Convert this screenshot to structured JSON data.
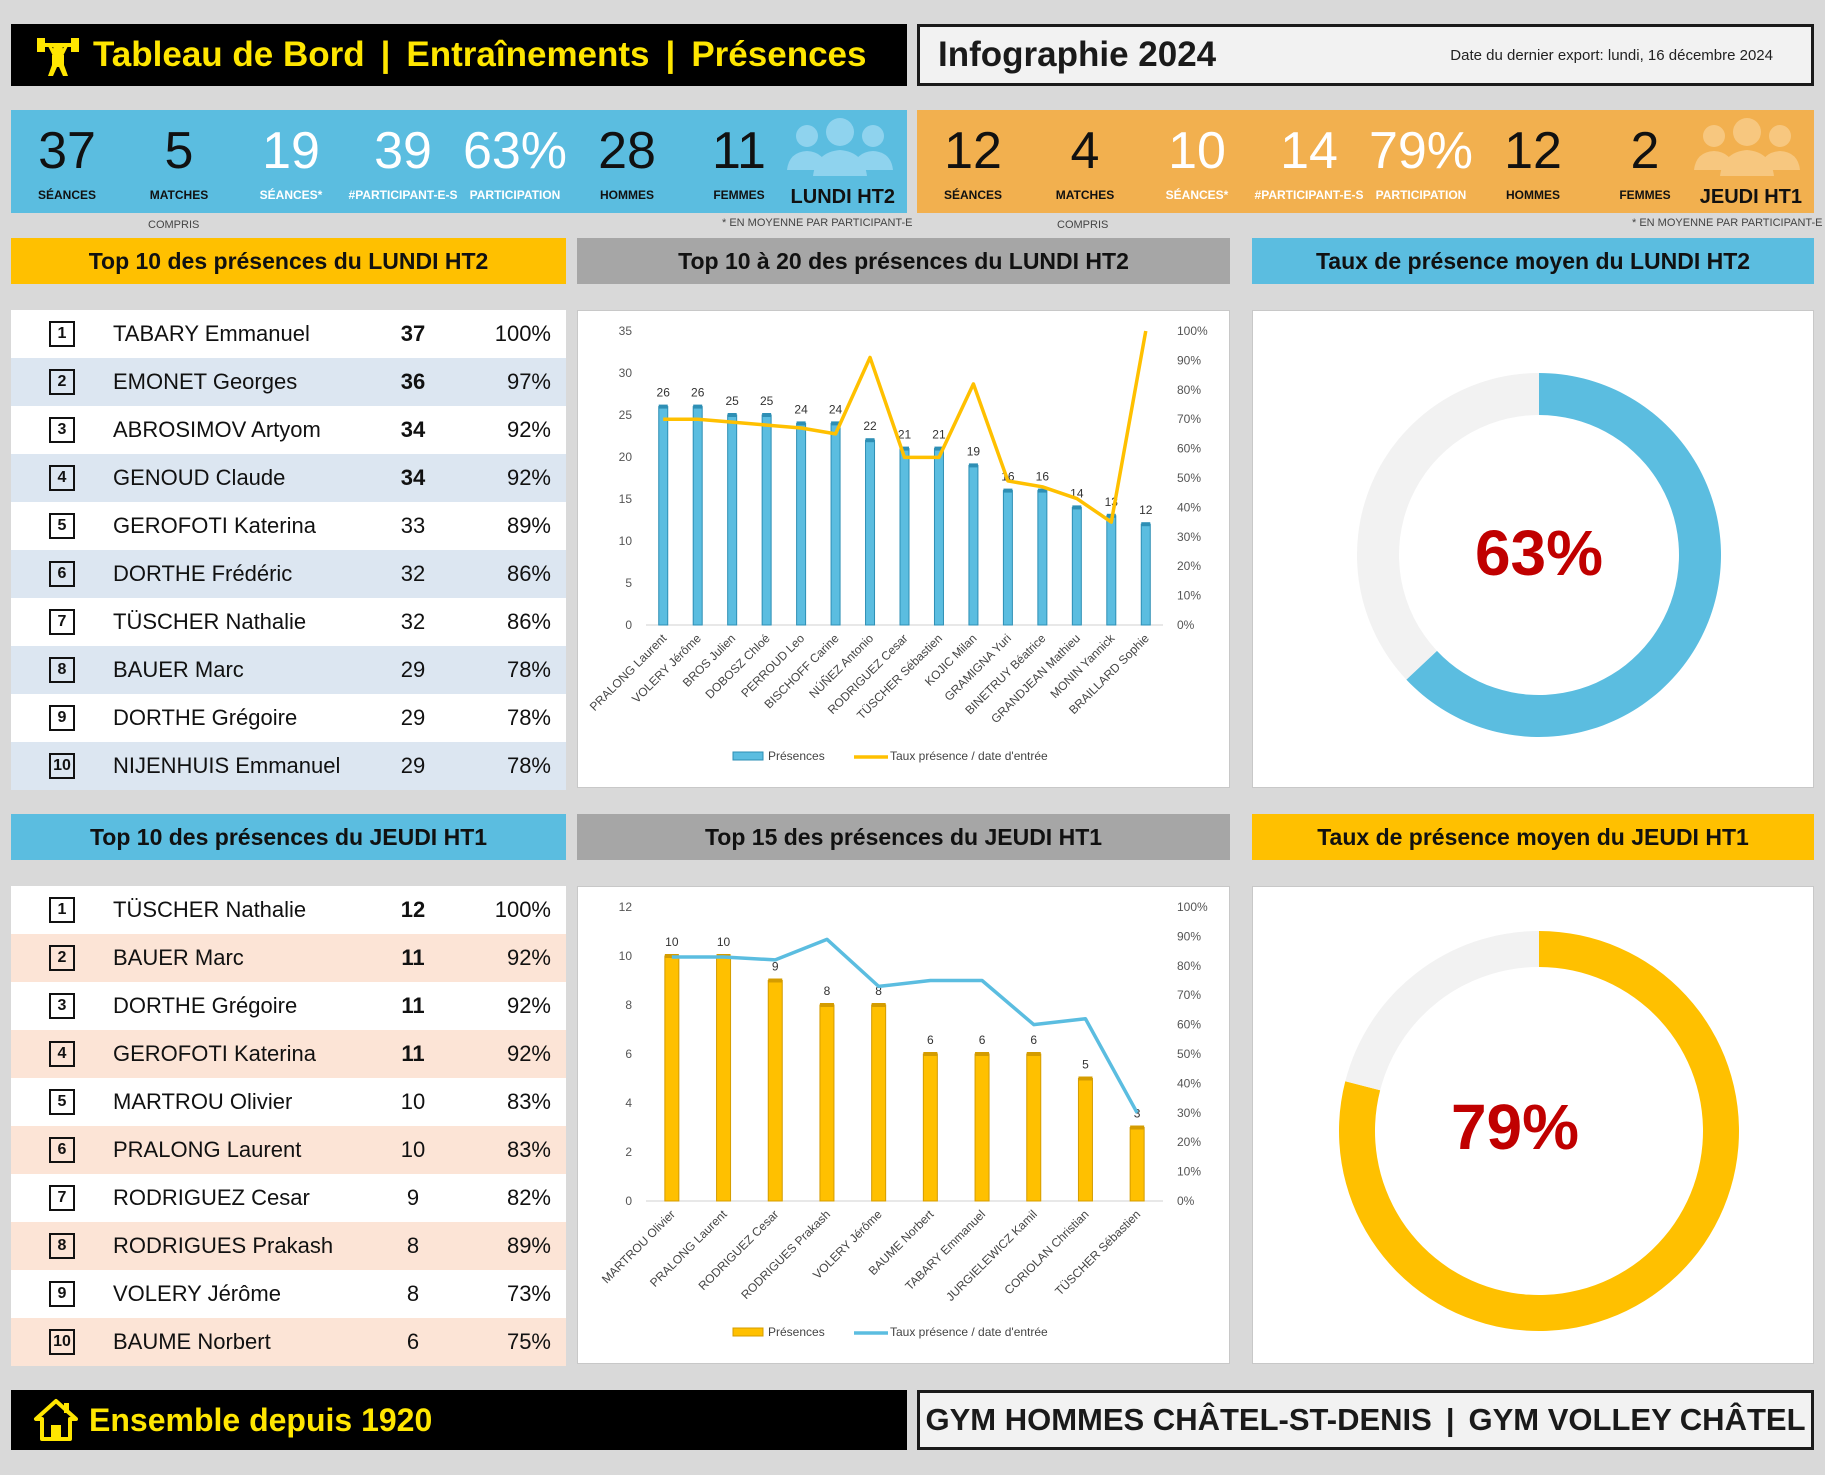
{
  "header": {
    "title_parts": [
      "Tableau de Bord",
      "Entraînements",
      "Présences"
    ],
    "separator": "|",
    "title_icon": "weightlifter-icon",
    "infographic_title": "Infographie 2024",
    "export_label": "Date du dernier export:",
    "export_date": "lundi, 16 décembre 2024"
  },
  "kpis_lundi": {
    "tag": "LUNDI HT2",
    "icon": "people-icon",
    "items": [
      {
        "value": "37",
        "label": "SÉANCES"
      },
      {
        "value": "5",
        "label": "MATCHES"
      },
      {
        "value": "19",
        "label": "SÉANCES*"
      },
      {
        "value": "39",
        "label": "#PARTICIPANT-E-S"
      },
      {
        "value": "63%",
        "label": "PARTICIPATION"
      },
      {
        "value": "28",
        "label": "HOMMES"
      },
      {
        "value": "11",
        "label": "FEMMES"
      }
    ],
    "note_left": "COMPRIS",
    "note_right": "* EN MOYENNE PAR PARTICIPANT-E"
  },
  "kpis_jeudi": {
    "tag": "JEUDI HT1",
    "icon": "people-icon",
    "items": [
      {
        "value": "12",
        "label": "SÉANCES"
      },
      {
        "value": "4",
        "label": "MATCHES"
      },
      {
        "value": "10",
        "label": "SÉANCES*"
      },
      {
        "value": "14",
        "label": "#PARTICIPANT-E-S"
      },
      {
        "value": "79%",
        "label": "PARTICIPATION"
      },
      {
        "value": "12",
        "label": "HOMMES"
      },
      {
        "value": "2",
        "label": "FEMMES"
      }
    ],
    "note_left": "COMPRIS",
    "note_right": "* EN MOYENNE PAR PARTICIPANT-E"
  },
  "sections": {
    "top10_lundi": "Top 10 des présences du LUNDI HT2",
    "top20_lundi": "Top 10 à 20 des présences du LUNDI HT2",
    "rate_lundi": "Taux de présence moyen du LUNDI HT2",
    "top10_jeudi": "Top 10 des présences du JEUDI HT1",
    "top15_jeudi": "Top 15 des présences du JEUDI HT1",
    "rate_jeudi": "Taux de présence moyen du JEUDI HT1"
  },
  "table_lundi": [
    {
      "rank": "1",
      "name": "TABARY Emmanuel",
      "count": "37",
      "pct": "100%",
      "bold": true
    },
    {
      "rank": "2",
      "name": "EMONET Georges",
      "count": "36",
      "pct": "97%",
      "bold": true
    },
    {
      "rank": "3",
      "name": "ABROSIMOV Artyom",
      "count": "34",
      "pct": "92%",
      "bold": true
    },
    {
      "rank": "4",
      "name": "GENOUD Claude",
      "count": "34",
      "pct": "92%",
      "bold": true
    },
    {
      "rank": "5",
      "name": "GEROFOTI Katerina",
      "count": "33",
      "pct": "89%",
      "bold": false
    },
    {
      "rank": "6",
      "name": "DORTHE Frédéric",
      "count": "32",
      "pct": "86%",
      "bold": false
    },
    {
      "rank": "7",
      "name": "TÜSCHER Nathalie",
      "count": "32",
      "pct": "86%",
      "bold": false
    },
    {
      "rank": "8",
      "name": "BAUER Marc",
      "count": "29",
      "pct": "78%",
      "bold": false
    },
    {
      "rank": "9",
      "name": "DORTHE Grégoire",
      "count": "29",
      "pct": "78%",
      "bold": false
    },
    {
      "rank": "10",
      "name": "NIJENHUIS Emmanuel",
      "count": "29",
      "pct": "78%",
      "bold": false
    }
  ],
  "table_jeudi": [
    {
      "rank": "1",
      "name": "TÜSCHER Nathalie",
      "count": "12",
      "pct": "100%",
      "bold": true
    },
    {
      "rank": "2",
      "name": "BAUER Marc",
      "count": "11",
      "pct": "92%",
      "bold": true
    },
    {
      "rank": "3",
      "name": "DORTHE Grégoire",
      "count": "11",
      "pct": "92%",
      "bold": true
    },
    {
      "rank": "4",
      "name": "GEROFOTI Katerina",
      "count": "11",
      "pct": "92%",
      "bold": true
    },
    {
      "rank": "5",
      "name": "MARTROU Olivier",
      "count": "10",
      "pct": "83%",
      "bold": false
    },
    {
      "rank": "6",
      "name": "PRALONG Laurent",
      "count": "10",
      "pct": "83%",
      "bold": false
    },
    {
      "rank": "7",
      "name": "RODRIGUEZ Cesar",
      "count": "9",
      "pct": "82%",
      "bold": false
    },
    {
      "rank": "8",
      "name": "RODRIGUES Prakash",
      "count": "8",
      "pct": "89%",
      "bold": false
    },
    {
      "rank": "9",
      "name": "VOLERY Jérôme",
      "count": "8",
      "pct": "73%",
      "bold": false
    },
    {
      "rank": "10",
      "name": "BAUME Norbert",
      "count": "6",
      "pct": "75%",
      "bold": false
    }
  ],
  "chart_data": [
    {
      "type": "bar",
      "title": "Top 10 à 20 des présences du LUNDI HT2",
      "categories": [
        "PRALONG Laurent",
        "VOLERY Jérôme",
        "BROS Julien",
        "DOBOSZ Chloé",
        "PERROUD Leo",
        "BISCHOFF Carine",
        "NÚÑEZ Antonio",
        "RODRIGUEZ Cesar",
        "TÜSCHER Sébastien",
        "KOJIC Milan",
        "GRAMIGNA Yuri",
        "BINETRUY Béatrice",
        "GRANDJEAN Mathieu",
        "MONIN Yannick",
        "BRAILLARD Sophie"
      ],
      "series": [
        {
          "name": "Présences",
          "values": [
            26,
            26,
            25,
            25,
            24,
            24,
            22,
            21,
            21,
            19,
            16,
            16,
            14,
            13,
            12
          ],
          "axis": "left",
          "color": "#5bbde0"
        },
        {
          "name": "Taux présence / date d'entrée",
          "values": [
            70,
            70,
            69,
            68,
            67,
            65,
            91,
            57,
            57,
            82,
            49,
            47,
            43,
            35,
            100
          ],
          "axis": "right",
          "color": "#ffc000"
        }
      ],
      "ylim": [
        0,
        35
      ],
      "yticks": [
        0,
        5,
        10,
        15,
        20,
        25,
        30,
        35
      ],
      "y2lim": [
        0,
        100
      ],
      "y2ticks": [
        "0%",
        "10%",
        "20%",
        "30%",
        "40%",
        "50%",
        "60%",
        "70%",
        "80%",
        "90%",
        "100%"
      ],
      "legend": "bottom",
      "grid": false
    },
    {
      "type": "bar",
      "title": "Top 15 des présences du JEUDI HT1",
      "categories": [
        "MARTROU Olivier",
        "PRALONG Laurent",
        "RODRIGUEZ Cesar",
        "RODRIGUES Prakash",
        "VOLERY Jérôme",
        "BAUME Norbert",
        "TABARY Emmanuel",
        "JURGIELEWICZ Kamil",
        "CORIOLAN Christian",
        "TÜSCHER Sébastien"
      ],
      "series": [
        {
          "name": "Présences",
          "values": [
            10,
            10,
            9,
            8,
            8,
            6,
            6,
            6,
            5,
            3
          ],
          "axis": "left",
          "color": "#ffc000"
        },
        {
          "name": "Taux présence / date d'entrée",
          "values": [
            83,
            83,
            82,
            89,
            73,
            75,
            75,
            60,
            62,
            30
          ],
          "axis": "right",
          "color": "#5bbde0"
        }
      ],
      "ylim": [
        0,
        12
      ],
      "yticks": [
        0,
        2,
        4,
        6,
        8,
        10,
        12
      ],
      "y2lim": [
        0,
        100
      ],
      "y2ticks": [
        "0%",
        "10%",
        "20%",
        "30%",
        "40%",
        "50%",
        "60%",
        "70%",
        "80%",
        "90%",
        "100%"
      ],
      "legend": "bottom",
      "grid": false
    },
    {
      "type": "pie",
      "title": "Taux de présence moyen du LUNDI HT2",
      "values": [
        63,
        37
      ],
      "label": "63%",
      "colors": [
        "#5bbde0",
        "#f2f2f2"
      ],
      "label_color": "#c00000"
    },
    {
      "type": "pie",
      "title": "Taux de présence moyen du JEUDI HT1",
      "values": [
        79,
        21
      ],
      "label": "79%",
      "colors": [
        "#ffc000",
        "#f2f2f2"
      ],
      "label_color": "#c00000"
    }
  ],
  "footer": {
    "left_text": "Ensemble depuis 1920",
    "left_icon": "house-icon",
    "right_parts": [
      "GYM HOMMES CHÂTEL-ST-DENIS",
      "GYM VOLLEY CHÂTEL"
    ],
    "separator": "|"
  }
}
